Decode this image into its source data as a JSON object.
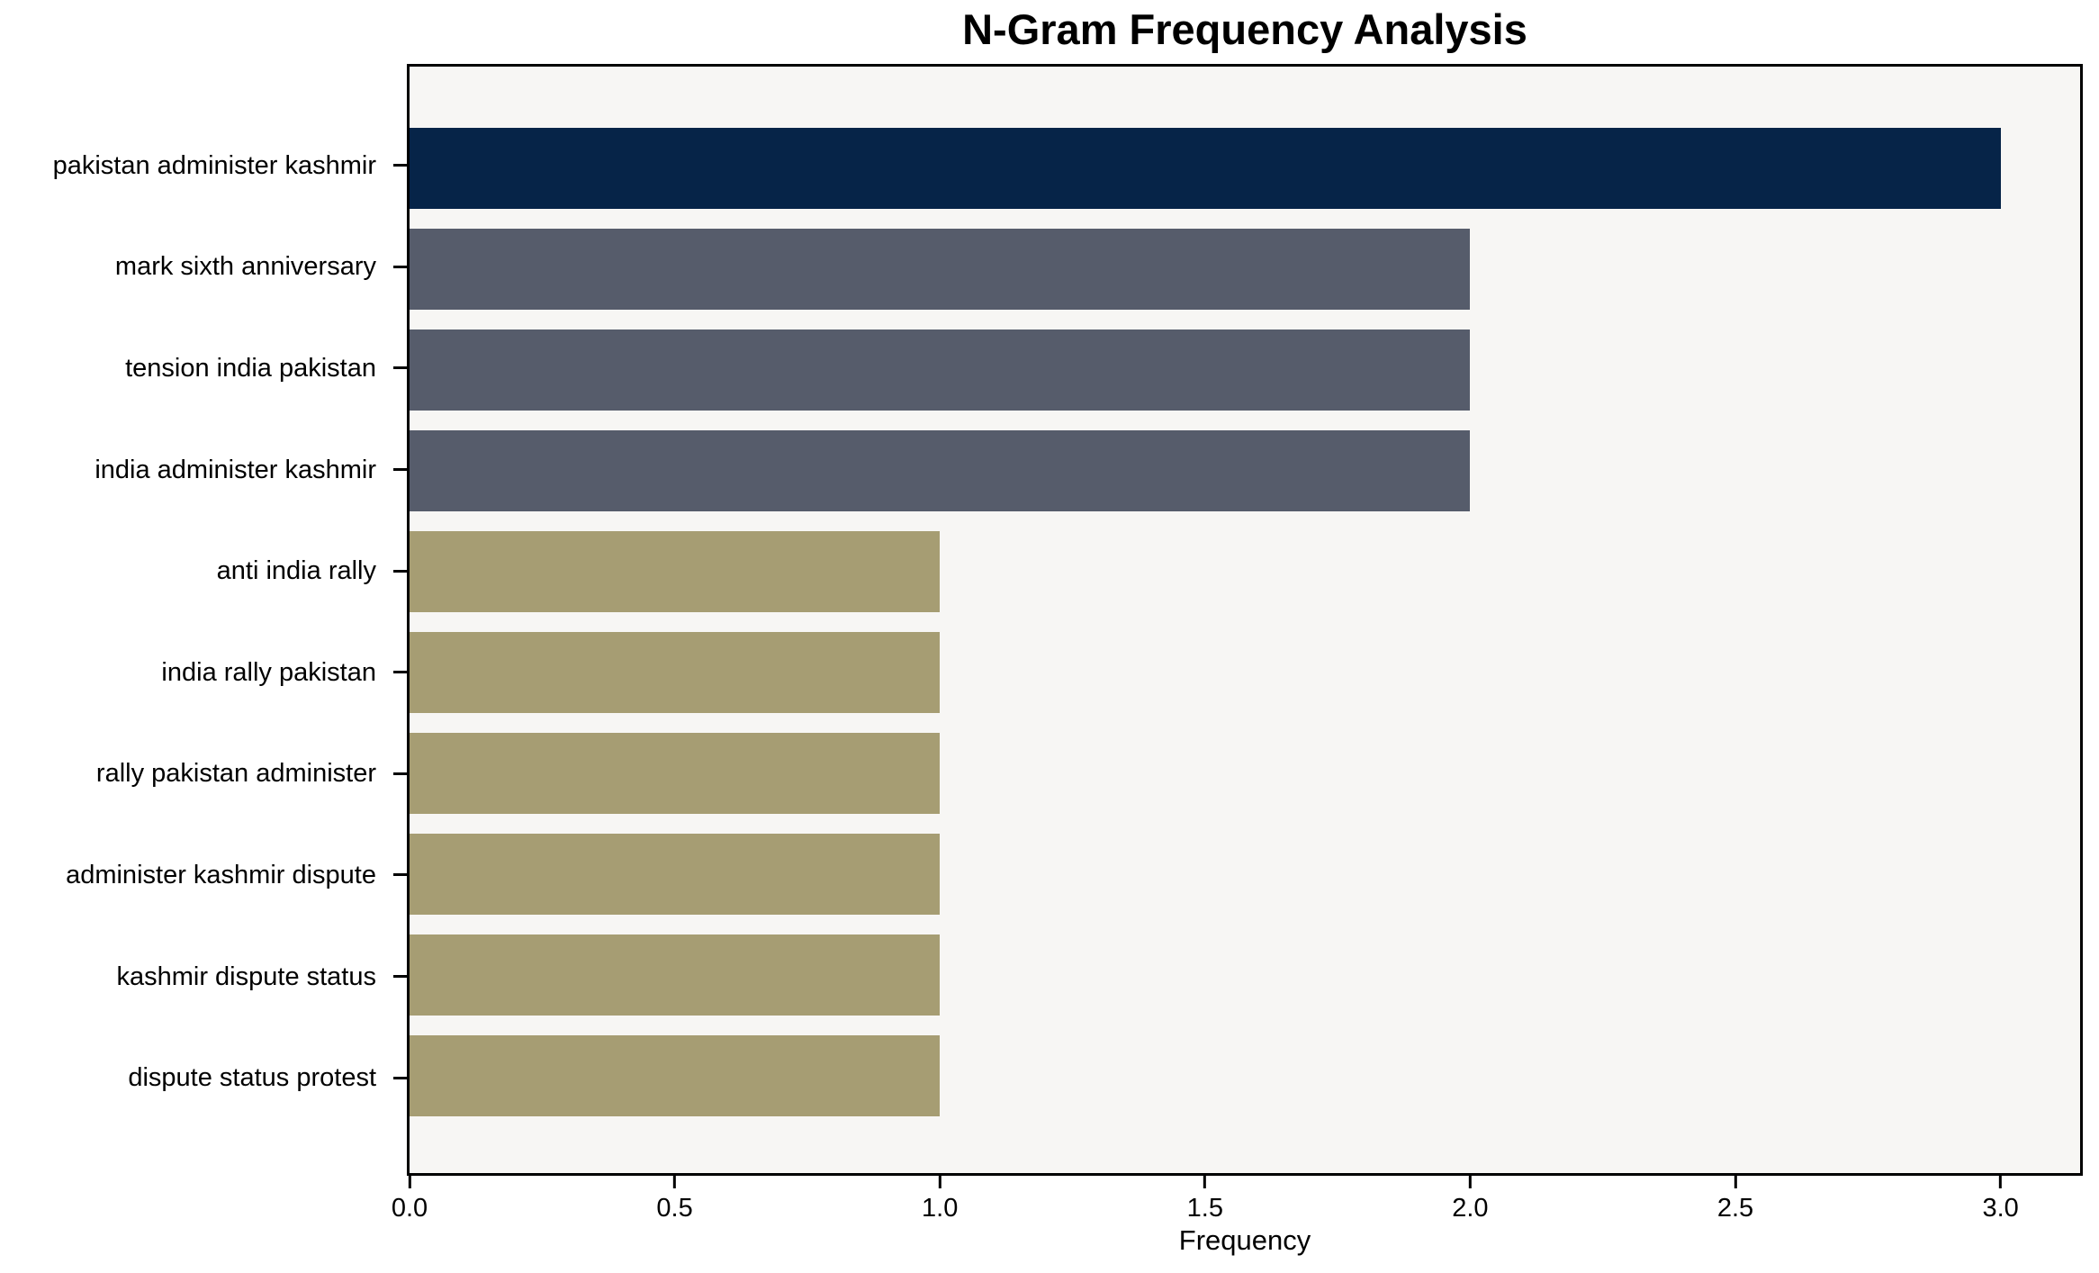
{
  "chart_data": {
    "type": "bar",
    "orientation": "horizontal",
    "title": "N-Gram Frequency Analysis",
    "xlabel": "Frequency",
    "ylabel": "",
    "categories": [
      "pakistan administer kashmir",
      "mark sixth anniversary",
      "tension india pakistan",
      "india administer kashmir",
      "anti india rally",
      "india rally pakistan",
      "rally pakistan administer",
      "administer kashmir dispute",
      "kashmir dispute status",
      "dispute status protest"
    ],
    "values": [
      3,
      2,
      2,
      2,
      1,
      1,
      1,
      1,
      1,
      1
    ],
    "bar_colors": [
      "#062448",
      "#565c6b",
      "#565c6b",
      "#565c6b",
      "#a69d73",
      "#a69d73",
      "#a69d73",
      "#a69d73",
      "#a69d73",
      "#a69d73"
    ],
    "xlim": [
      0,
      3.15
    ],
    "x_ticks": [
      0.0,
      0.5,
      1.0,
      1.5,
      2.0,
      2.5,
      3.0
    ],
    "x_tick_labels": [
      "0.0",
      "0.5",
      "1.0",
      "1.5",
      "2.0",
      "2.5",
      "3.0"
    ],
    "grid": false,
    "legend_position": "none",
    "colors": {
      "plot_background": "#f7f6f4",
      "figure_background": "#ffffff",
      "spine": "#000000",
      "text": "#000000"
    }
  }
}
